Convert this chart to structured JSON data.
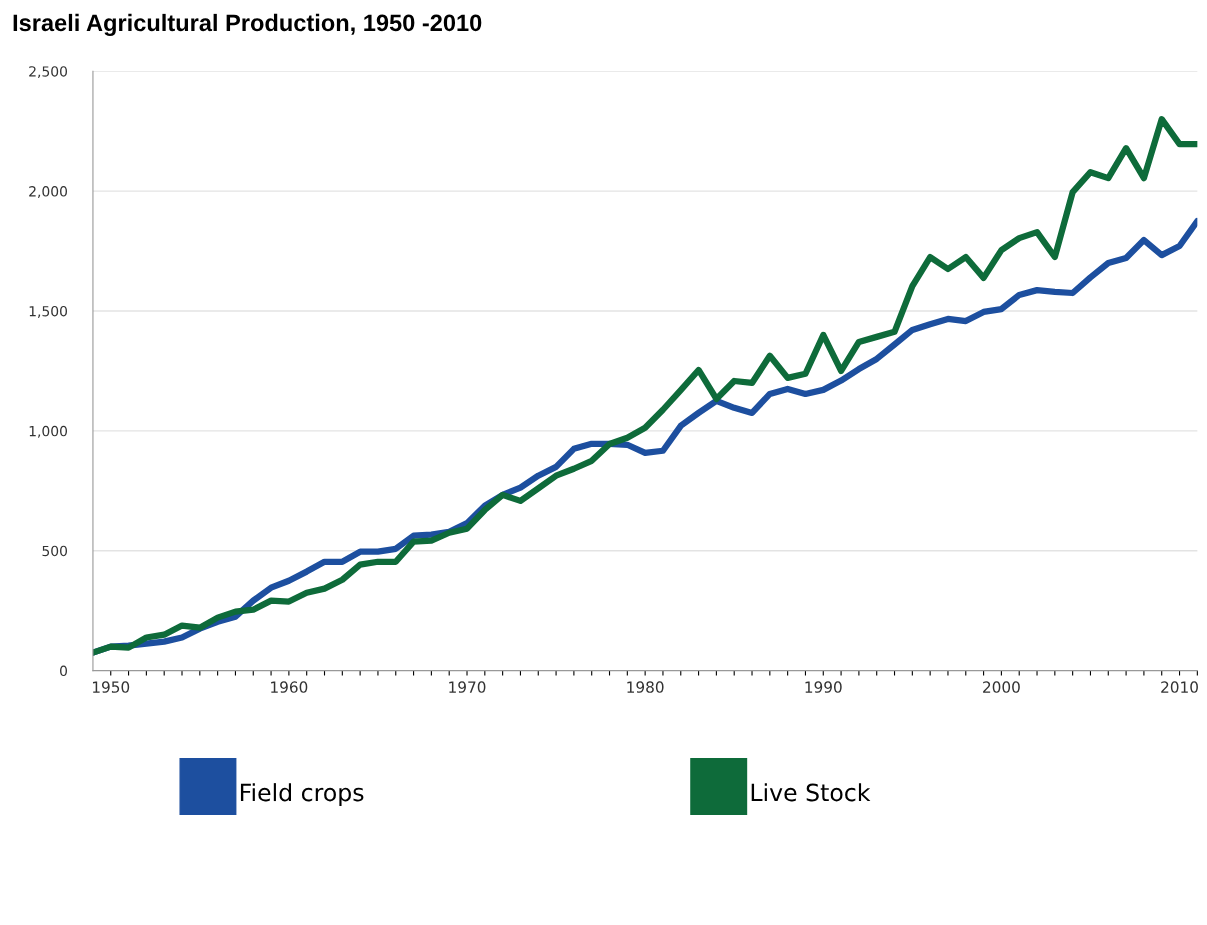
{
  "chart_data": {
    "type": "line",
    "title": "Israeli Agricultural Production, 1950 -2010",
    "x": [
      1949,
      1950,
      1951,
      1952,
      1953,
      1954,
      1955,
      1956,
      1957,
      1958,
      1959,
      1960,
      1961,
      1962,
      1963,
      1964,
      1965,
      1966,
      1967,
      1968,
      1969,
      1970,
      1971,
      1972,
      1973,
      1974,
      1975,
      1976,
      1977,
      1978,
      1979,
      1980,
      1981,
      1982,
      1983,
      1984,
      1985,
      1986,
      1987,
      1988,
      1989,
      1990,
      1991,
      1992,
      1993,
      1994,
      1995,
      1996,
      1997,
      1998,
      1999,
      2000,
      2001,
      2002,
      2003,
      2004,
      2005,
      2006,
      2007,
      2008,
      2009,
      2010,
      2011
    ],
    "series": [
      {
        "name": "Field crops",
        "color": "#1d4f9f",
        "values": [
          75,
          100,
          104,
          113,
          121,
          138,
          175,
          204,
          225,
          292,
          346,
          375,
          413,
          454,
          454,
          496,
          496,
          508,
          563,
          567,
          579,
          615,
          688,
          733,
          763,
          813,
          850,
          925,
          946,
          946,
          942,
          908,
          917,
          1021,
          1075,
          1125,
          1096,
          1075,
          1154,
          1175,
          1154,
          1171,
          1210,
          1258,
          1300,
          1360,
          1421,
          1445,
          1467,
          1458,
          1496,
          1508,
          1567,
          1587,
          1580,
          1575,
          1640,
          1700,
          1721,
          1796,
          1733,
          1771,
          1875
        ]
      },
      {
        "name": "Live Stock",
        "color": "#0e6b3a",
        "values": [
          75,
          100,
          96,
          138,
          150,
          188,
          179,
          221,
          246,
          254,
          292,
          288,
          325,
          342,
          379,
          442,
          454,
          454,
          538,
          542,
          575,
          592,
          670,
          733,
          708,
          760,
          813,
          842,
          875,
          945,
          971,
          1013,
          1088,
          1170,
          1254,
          1133,
          1208,
          1200,
          1313,
          1221,
          1238,
          1400,
          1250,
          1371,
          1392,
          1413,
          1604,
          1725,
          1675,
          1725,
          1638,
          1754,
          1804,
          1829,
          1725,
          1996,
          2079,
          2054,
          2179,
          2054,
          2300,
          2196,
          2196
        ]
      }
    ],
    "xlim": [
      1949,
      2011
    ],
    "xticks": [
      1950,
      {
        "value": 1951,
        "label": null
      },
      {
        "value": 1952,
        "label": null
      },
      {
        "value": 1953,
        "label": null
      },
      {
        "value": 1954,
        "label": null
      },
      {
        "value": 1955,
        "label": null
      },
      {
        "value": 1956,
        "label": null
      },
      {
        "value": 1957,
        "label": null
      },
      {
        "value": 1958,
        "label": null
      },
      {
        "value": 1959,
        "label": null
      },
      1960,
      {
        "value": 1961,
        "label": null
      },
      {
        "value": 1962,
        "label": null
      },
      {
        "value": 1963,
        "label": null
      },
      {
        "value": 1964,
        "label": null
      },
      {
        "value": 1965,
        "label": null
      },
      {
        "value": 1966,
        "label": null
      },
      {
        "value": 1967,
        "label": null
      },
      {
        "value": 1968,
        "label": null
      },
      {
        "value": 1969,
        "label": null
      },
      1970,
      {
        "value": 1971,
        "label": null
      },
      {
        "value": 1972,
        "label": null
      },
      {
        "value": 1973,
        "label": null
      },
      {
        "value": 1974,
        "label": null
      },
      {
        "value": 1975,
        "label": null
      },
      {
        "value": 1976,
        "label": null
      },
      {
        "value": 1977,
        "label": null
      },
      {
        "value": 1978,
        "label": null
      },
      {
        "value": 1979,
        "label": null
      },
      1980,
      {
        "value": 1981,
        "label": null
      },
      {
        "value": 1982,
        "label": null
      },
      {
        "value": 1983,
        "label": null
      },
      {
        "value": 1984,
        "label": null
      },
      {
        "value": 1985,
        "label": null
      },
      {
        "value": 1986,
        "label": null
      },
      {
        "value": 1987,
        "label": null
      },
      {
        "value": 1988,
        "label": null
      },
      {
        "value": 1989,
        "label": null
      },
      1990,
      {
        "value": 1991,
        "label": null
      },
      {
        "value": 1992,
        "label": null
      },
      {
        "value": 1993,
        "label": null
      },
      {
        "value": 1994,
        "label": null
      },
      {
        "value": 1995,
        "label": null
      },
      {
        "value": 1996,
        "label": null
      },
      {
        "value": 1997,
        "label": null
      },
      {
        "value": 1998,
        "label": null
      },
      {
        "value": 1999,
        "label": null
      },
      2000,
      {
        "value": 2001,
        "label": null
      },
      {
        "value": 2002,
        "label": null
      },
      {
        "value": 2003,
        "label": null
      },
      {
        "value": 2004,
        "label": null
      },
      {
        "value": 2005,
        "label": null
      },
      {
        "value": 2006,
        "label": null
      },
      {
        "value": 2007,
        "label": null
      },
      {
        "value": 2008,
        "label": null
      },
      {
        "value": 2009,
        "label": null
      },
      2010,
      {
        "value": 2011,
        "label": null
      }
    ],
    "ylim": [
      0,
      2500
    ],
    "yticks": [
      0,
      {
        "value": 500,
        "label": "500"
      },
      {
        "value": 1000,
        "label": "1,000"
      },
      {
        "value": 1500,
        "label": "1,500"
      },
      {
        "value": 2000,
        "label": "2,000"
      },
      {
        "value": 2500,
        "label": "2,500"
      }
    ],
    "grid": "y",
    "legend": "bottom left",
    "marker": "none",
    "line_style": "solid"
  }
}
